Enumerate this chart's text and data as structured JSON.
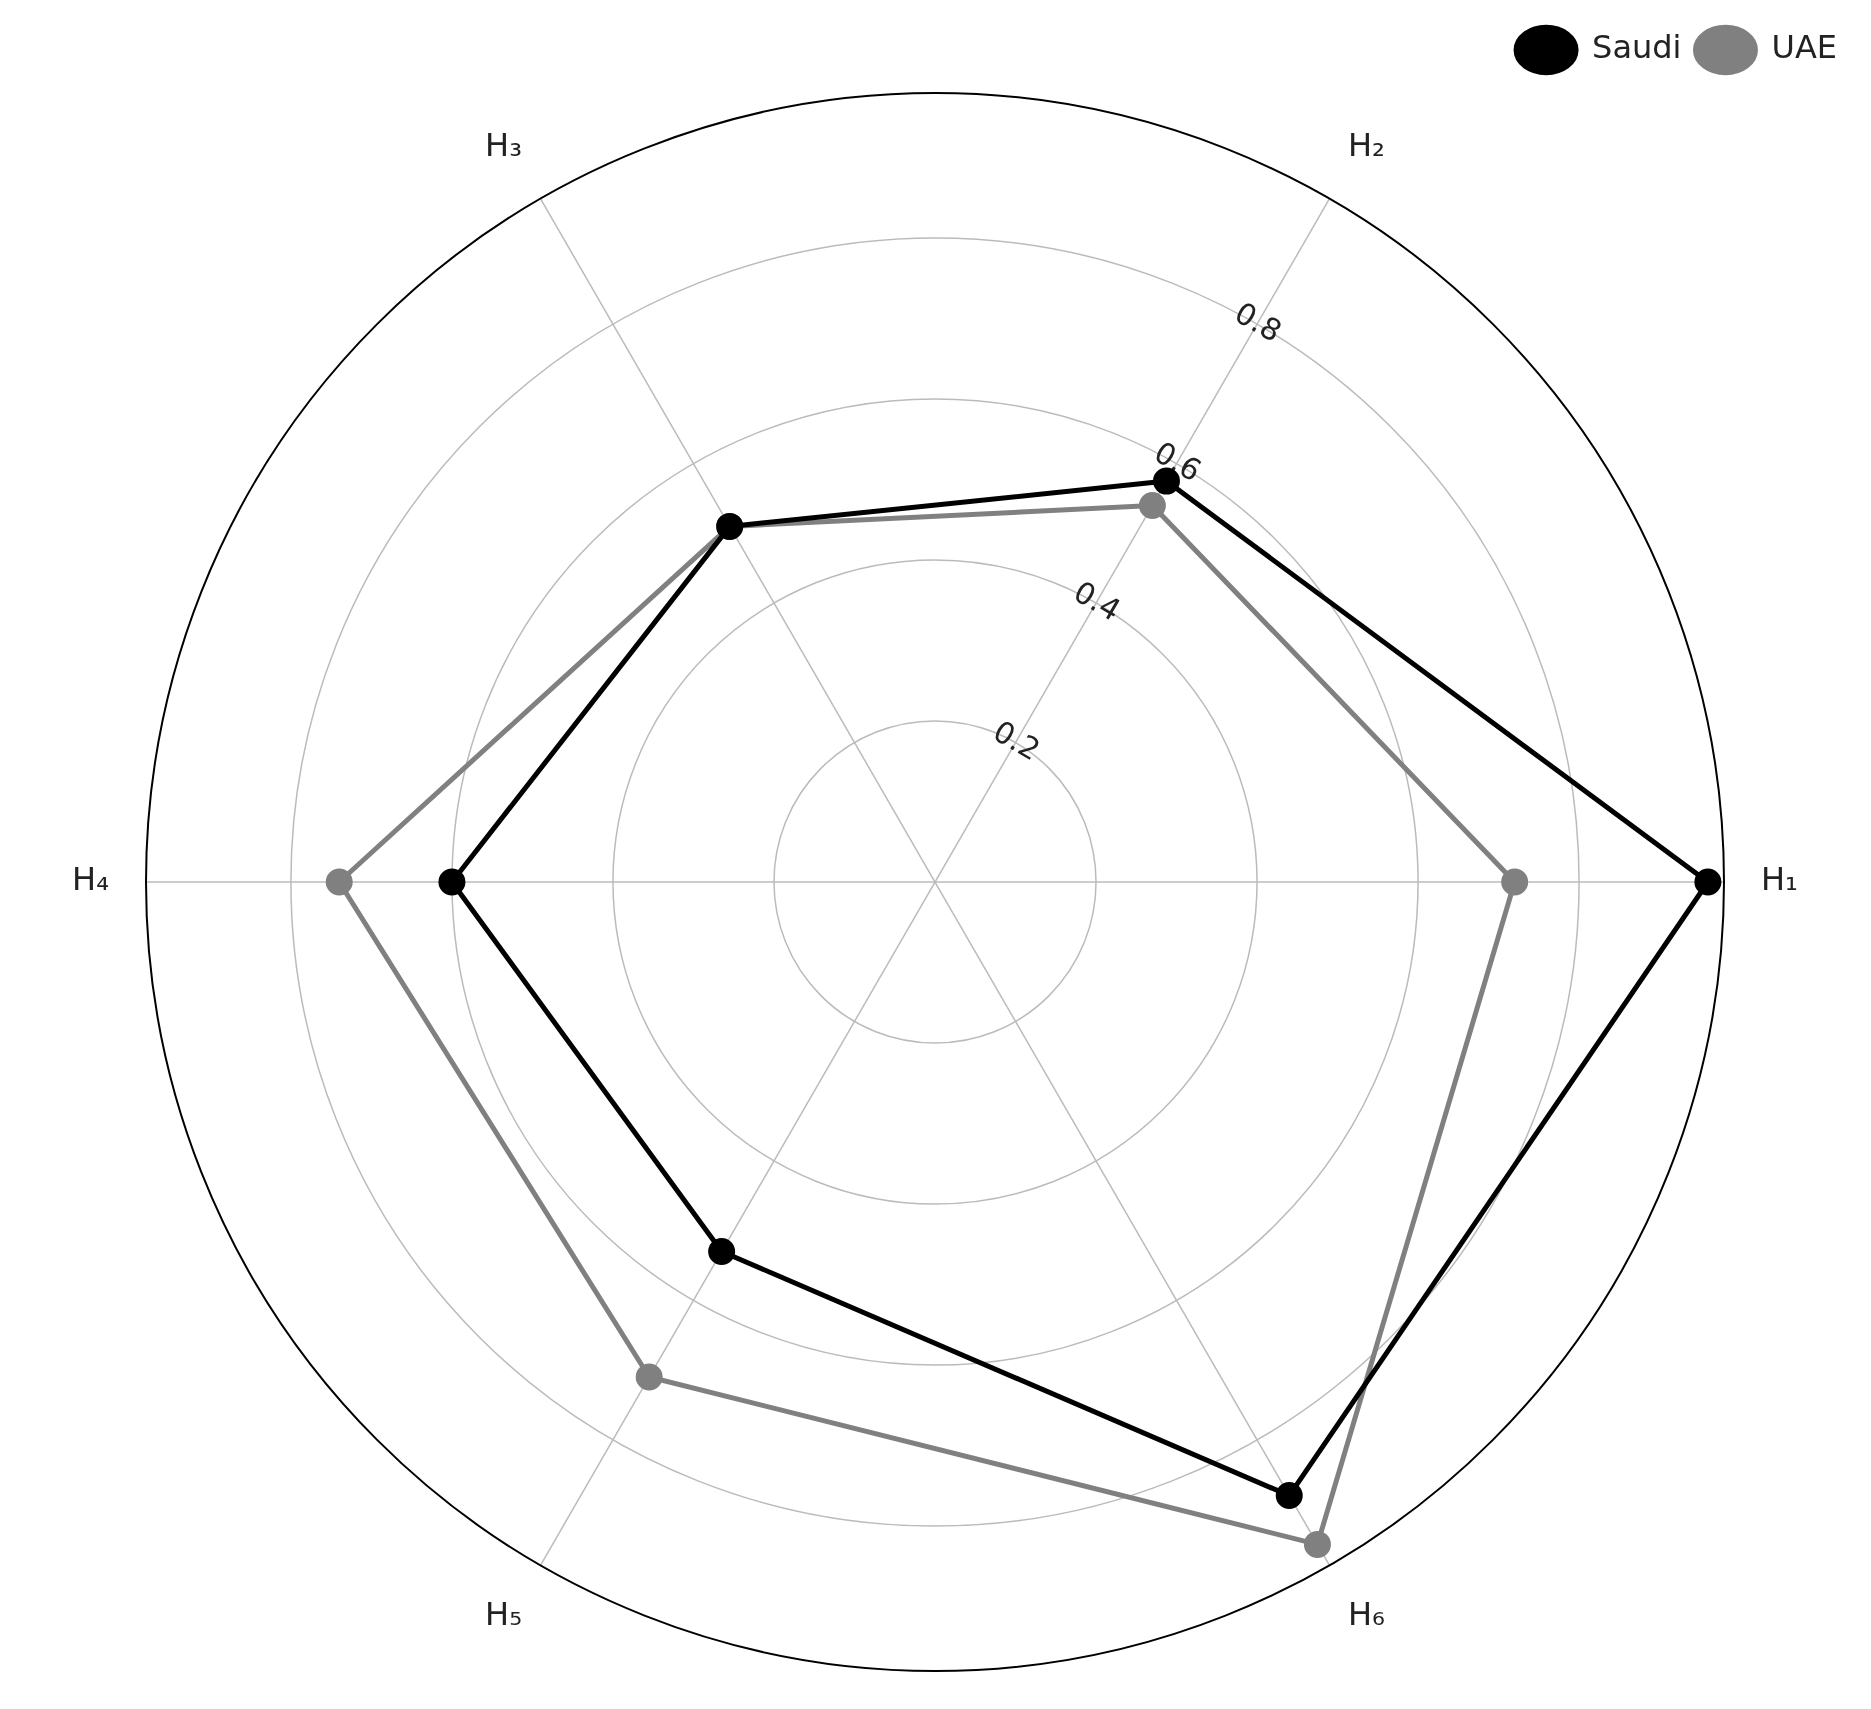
{
  "chart_data": {
    "type": "radar",
    "categories": [
      "H₂",
      "H₁",
      "H₆",
      "H₅",
      "H₄",
      "H₃"
    ],
    "series": [
      {
        "name": "Saudi",
        "color": "#000000",
        "values": [
          0.575,
          0.96,
          0.88,
          0.53,
          0.6,
          0.51
        ]
      },
      {
        "name": "UAE",
        "color": "#808080",
        "values": [
          0.54,
          0.72,
          0.95,
          0.71,
          0.74,
          0.51
        ]
      }
    ],
    "ylim": [
      0,
      0.98
    ],
    "yticks": [
      0.2,
      0.4,
      0.6,
      0.8
    ],
    "grid": true,
    "legend": "top right",
    "marker": "circle",
    "line_style": "solid"
  }
}
